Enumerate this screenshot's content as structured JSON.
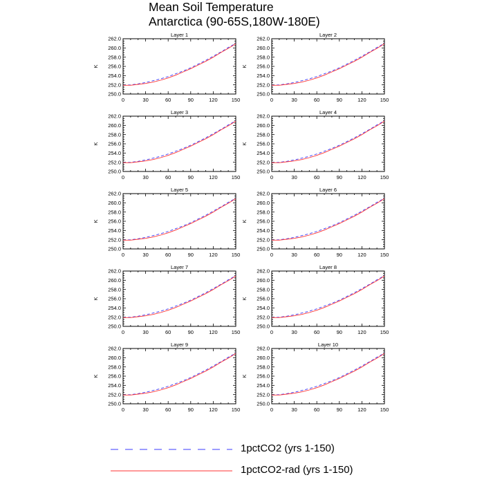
{
  "header": {
    "title_line1": "Mean Soil Temperature",
    "title_line2": "Antarctica (90-65S,180W-180E)"
  },
  "legend": {
    "items": [
      {
        "label": "1pctCO2 (yrs 1-150)",
        "color": "#3a3aff",
        "dash": "dashed"
      },
      {
        "label": "1pctCO2-rad (yrs 1-150)",
        "color": "#ff3030",
        "dash": "solid"
      }
    ]
  },
  "chart_data": {
    "type": "line",
    "ylabel": "K",
    "xlim": [
      0,
      150
    ],
    "ylim": [
      250.0,
      262.0
    ],
    "xticks": [
      0,
      30,
      60,
      90,
      120,
      150
    ],
    "yticks": [
      "250.0",
      "252.0",
      "254.0",
      "256.0",
      "258.0",
      "260.0",
      "262.0"
    ],
    "x": [
      0,
      10,
      20,
      30,
      40,
      50,
      60,
      70,
      80,
      90,
      100,
      110,
      120,
      130,
      140,
      150
    ],
    "series": [
      {
        "name": "1pctCO2 (yrs 1-150)",
        "color": "#3a3aff",
        "values": [
          251.9,
          252.0,
          252.2,
          252.5,
          252.9,
          253.3,
          253.8,
          254.4,
          255.0,
          255.7,
          256.5,
          257.3,
          258.2,
          259.1,
          260.1,
          261.0
        ]
      },
      {
        "name": "1pctCO2-rad (yrs 1-150)",
        "color": "#ff3030",
        "values": [
          251.9,
          251.9,
          252.1,
          252.3,
          252.6,
          253.0,
          253.5,
          254.1,
          254.8,
          255.5,
          256.3,
          257.1,
          258.0,
          259.0,
          259.9,
          260.9
        ]
      }
    ],
    "panels": [
      {
        "title": "Layer 1"
      },
      {
        "title": "Layer 2"
      },
      {
        "title": "Layer 3"
      },
      {
        "title": "Layer 4"
      },
      {
        "title": "Layer 5"
      },
      {
        "title": "Layer 6"
      },
      {
        "title": "Layer 7"
      },
      {
        "title": "Layer 8"
      },
      {
        "title": "Layer 9"
      },
      {
        "title": "Layer 10"
      }
    ]
  }
}
